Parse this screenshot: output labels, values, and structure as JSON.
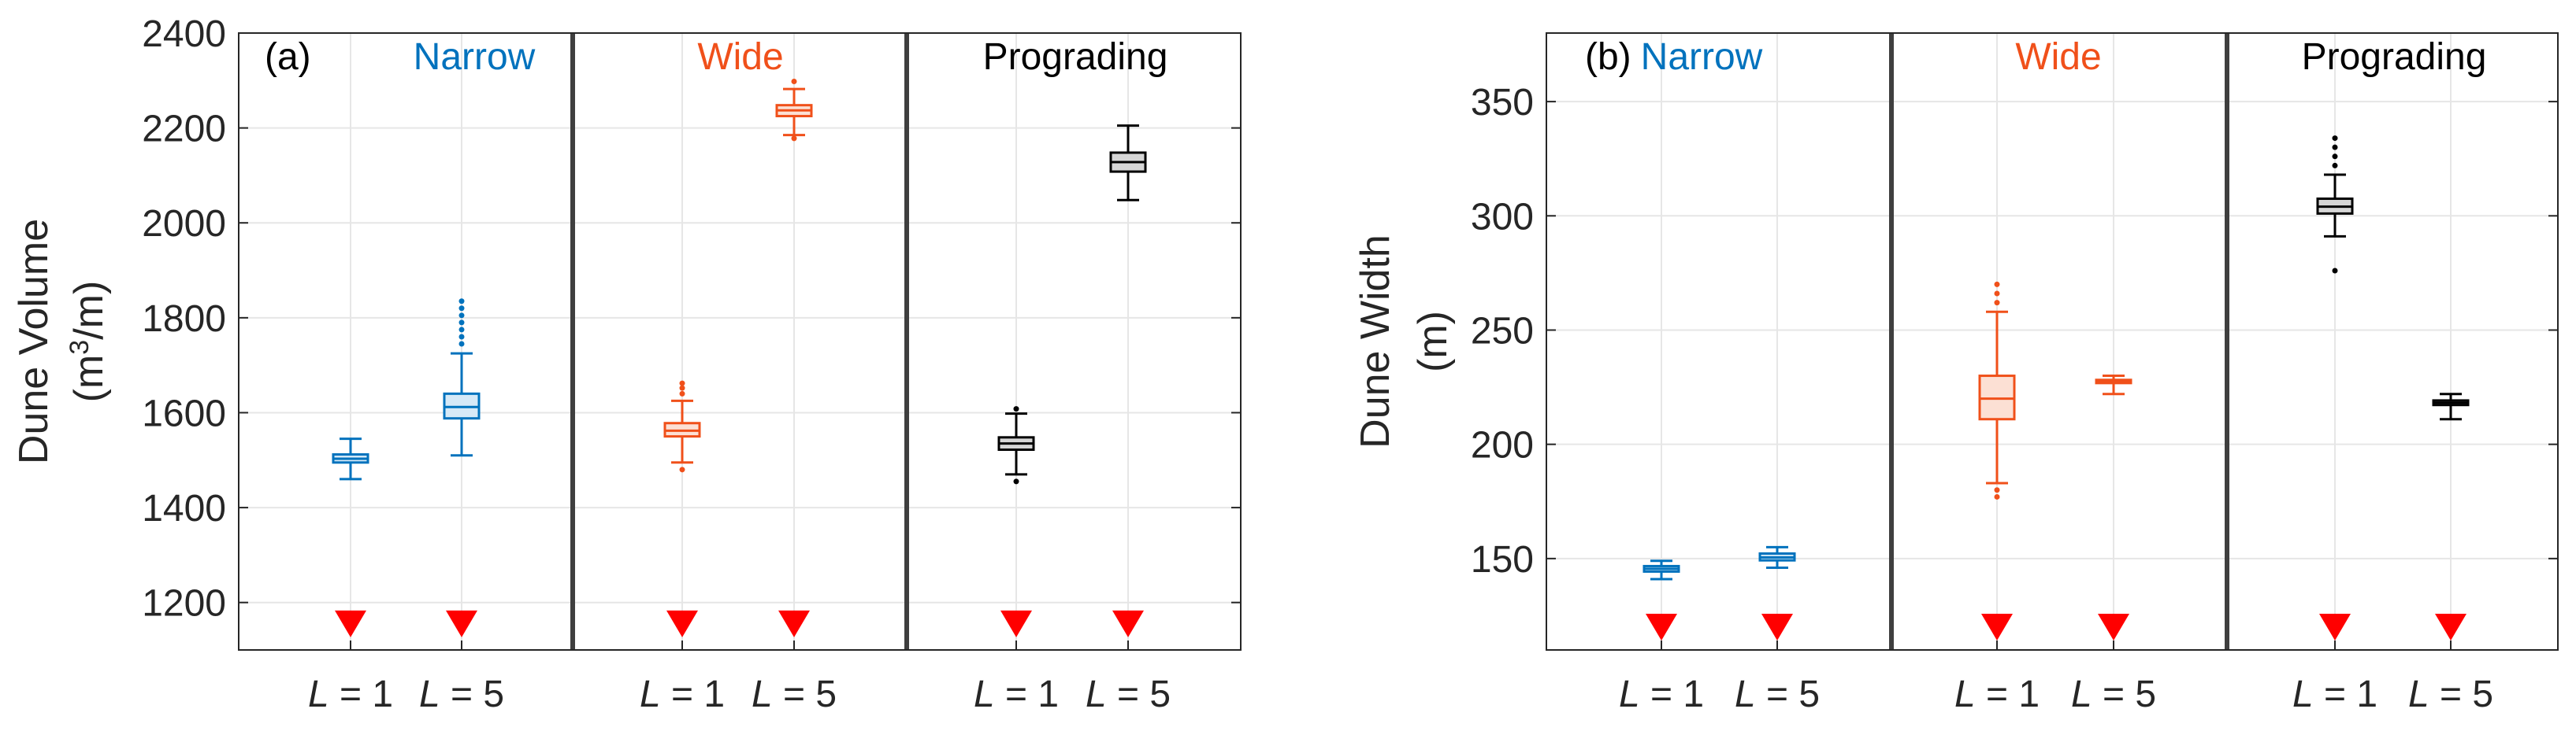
{
  "chart_data": [
    {
      "type": "box",
      "id": "a",
      "panel_label": "(a)",
      "ylabel_line1": "Dune Volume",
      "ylabel_unit_open": "(m",
      "ylabel_unit_sup": "3",
      "ylabel_unit_close": "/m)",
      "ylim": [
        1100,
        2400
      ],
      "yticks": [
        "1200",
        "1400",
        "1600",
        "1800",
        "2000",
        "2200",
        "2400"
      ],
      "groups": [
        {
          "name": "Narrow",
          "color": "#0072BD",
          "fill": "#D6E9F7"
        },
        {
          "name": "Wide",
          "color": "#F0501A",
          "fill": "#FCE0D4"
        },
        {
          "name": "Prograding",
          "color": "#000000",
          "fill": "#D6D6D6"
        }
      ],
      "categories": [
        {
          "math": "L",
          "rest": " = 1"
        },
        {
          "math": "L",
          "rest": " = 5"
        }
      ],
      "marker_value": 1155,
      "boxes": [
        {
          "group": 0,
          "pos": 0,
          "q1": 1495,
          "median": 1503,
          "q3": 1512,
          "wlo": 1460,
          "whi": 1545,
          "outliers": []
        },
        {
          "group": 0,
          "pos": 1,
          "q1": 1588,
          "median": 1612,
          "q3": 1640,
          "wlo": 1510,
          "whi": 1725,
          "outliers": [
            1745,
            1760,
            1775,
            1790,
            1805,
            1820,
            1835
          ]
        },
        {
          "group": 1,
          "pos": 0,
          "q1": 1550,
          "median": 1562,
          "q3": 1578,
          "wlo": 1495,
          "whi": 1625,
          "outliers": [
            1480,
            1640,
            1652,
            1662
          ]
        },
        {
          "group": 1,
          "pos": 1,
          "q1": 2225,
          "median": 2237,
          "q3": 2248,
          "wlo": 2185,
          "whi": 2282,
          "outliers": [
            2178,
            2298
          ]
        },
        {
          "group": 2,
          "pos": 0,
          "q1": 1522,
          "median": 1535,
          "q3": 1548,
          "wlo": 1470,
          "whi": 1598,
          "outliers": [
            1455,
            1608
          ]
        },
        {
          "group": 2,
          "pos": 1,
          "q1": 2108,
          "median": 2128,
          "q3": 2148,
          "wlo": 2048,
          "whi": 2205,
          "outliers": []
        }
      ]
    },
    {
      "type": "box",
      "id": "b",
      "panel_label": "(b)",
      "ylabel_line1": "Dune Width",
      "ylabel_unit": "(m)",
      "ylim": [
        110,
        380
      ],
      "yticks": [
        "150",
        "200",
        "250",
        "300",
        "350"
      ],
      "groups": [
        {
          "name": "Narrow",
          "color": "#0072BD",
          "fill": "#D6E9F7"
        },
        {
          "name": "Wide",
          "color": "#F0501A",
          "fill": "#FCE0D4"
        },
        {
          "name": "Prograding",
          "color": "#000000",
          "fill": "#D6D6D6"
        }
      ],
      "categories": [
        {
          "math": "L",
          "rest": " = 1"
        },
        {
          "math": "L",
          "rest": " = 5"
        }
      ],
      "marker_value": 120,
      "boxes": [
        {
          "group": 0,
          "pos": 0,
          "q1": 144.3,
          "median": 145.5,
          "q3": 146.7,
          "wlo": 141,
          "whi": 149,
          "outliers": []
        },
        {
          "group": 0,
          "pos": 1,
          "q1": 149.2,
          "median": 150.5,
          "q3": 152.2,
          "wlo": 146,
          "whi": 155,
          "outliers": []
        },
        {
          "group": 1,
          "pos": 0,
          "q1": 211,
          "median": 220,
          "q3": 230,
          "wlo": 183,
          "whi": 258,
          "outliers": [
            177,
            180,
            262,
            266,
            270
          ]
        },
        {
          "group": 1,
          "pos": 1,
          "q1": 226.8,
          "median": 227.5,
          "q3": 228.2,
          "wlo": 222,
          "whi": 230,
          "outliers": []
        },
        {
          "group": 2,
          "pos": 0,
          "q1": 301,
          "median": 304,
          "q3": 307.5,
          "wlo": 291,
          "whi": 318,
          "outliers": [
            276,
            322,
            326,
            330,
            334
          ]
        },
        {
          "group": 2,
          "pos": 1,
          "q1": 217.2,
          "median": 218.2,
          "q3": 219.2,
          "wlo": 211,
          "whi": 222,
          "outliers": []
        }
      ]
    }
  ]
}
